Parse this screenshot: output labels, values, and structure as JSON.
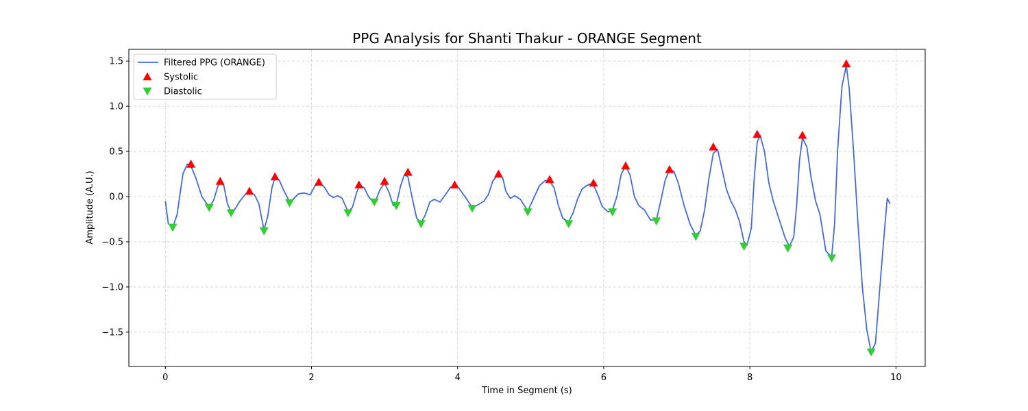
{
  "chart_data": {
    "type": "line",
    "title": "PPG Analysis for Shanti Thakur - ORANGE Segment",
    "xlabel": "Time in Segment (s)",
    "ylabel": "Amplitude (A.U.)",
    "xlim": [
      -0.5,
      10.4
    ],
    "ylim": [
      -1.88,
      1.63
    ],
    "xticks": [
      0,
      2,
      4,
      6,
      8,
      10
    ],
    "xtick_labels": [
      "0",
      "2",
      "4",
      "6",
      "8",
      "10"
    ],
    "yticks": [
      -1.5,
      -1.0,
      -0.5,
      0.0,
      0.5,
      1.0,
      1.5
    ],
    "ytick_labels": [
      "−1.5",
      "−1.0",
      "−0.5",
      "0.0",
      "0.5",
      "1.0",
      "1.5"
    ],
    "grid": true,
    "legend_position": "top-left",
    "series": [
      {
        "name": "Filtered PPG (ORANGE)",
        "kind": "line",
        "color": "#4169e1",
        "x": [
          0.0,
          0.04,
          0.1,
          0.16,
          0.24,
          0.3,
          0.35,
          0.42,
          0.5,
          0.6,
          0.66,
          0.72,
          0.76,
          0.8,
          0.85,
          0.9,
          0.96,
          1.02,
          1.1,
          1.15,
          1.22,
          1.28,
          1.35,
          1.4,
          1.46,
          1.5,
          1.56,
          1.62,
          1.7,
          1.76,
          1.82,
          1.9,
          1.98,
          2.05,
          2.12,
          2.18,
          2.24,
          2.3,
          2.36,
          2.42,
          2.5,
          2.56,
          2.62,
          2.66,
          2.72,
          2.78,
          2.84,
          2.88,
          2.94,
          3.0,
          3.06,
          3.12,
          3.16,
          3.22,
          3.27,
          3.32,
          3.38,
          3.44,
          3.5,
          3.56,
          3.62,
          3.68,
          3.76,
          3.84,
          3.9,
          3.96,
          4.02,
          4.1,
          4.2,
          4.28,
          4.36,
          4.42,
          4.48,
          4.56,
          4.62,
          4.66,
          4.72,
          4.78,
          4.86,
          4.96,
          5.04,
          5.12,
          5.2,
          5.26,
          5.32,
          5.38,
          5.44,
          5.52,
          5.58,
          5.64,
          5.7,
          5.76,
          5.82,
          5.86,
          5.92,
          5.98,
          6.06,
          6.12,
          6.18,
          6.24,
          6.3,
          6.36,
          6.42,
          6.48,
          6.56,
          6.64,
          6.72,
          6.78,
          6.84,
          6.9,
          6.96,
          7.02,
          7.1,
          7.18,
          7.26,
          7.32,
          7.38,
          7.44,
          7.5,
          7.56,
          7.62,
          7.68,
          7.74,
          7.8,
          7.86,
          7.92,
          7.96,
          8.02,
          8.06,
          8.1,
          8.14,
          8.2,
          8.26,
          8.32,
          8.4,
          8.48,
          8.54,
          8.6,
          8.64,
          8.68,
          8.72,
          8.78,
          8.84,
          8.9,
          8.96,
          9.04,
          9.12,
          9.16,
          9.2,
          9.26,
          9.32,
          9.36,
          9.42,
          9.48,
          9.54,
          9.6,
          9.66,
          9.72,
          9.78,
          9.84,
          9.88,
          9.92
        ],
        "y": [
          -0.05,
          -0.3,
          -0.34,
          -0.2,
          0.25,
          0.36,
          0.34,
          0.2,
          0.0,
          -0.12,
          -0.04,
          0.12,
          0.16,
          0.12,
          -0.08,
          -0.17,
          -0.13,
          -0.05,
          0.03,
          0.05,
          0.02,
          -0.08,
          -0.37,
          -0.22,
          0.1,
          0.21,
          0.18,
          0.07,
          -0.06,
          -0.02,
          0.03,
          0.04,
          0.02,
          0.12,
          0.15,
          0.1,
          0.02,
          -0.01,
          0.01,
          -0.02,
          -0.17,
          -0.12,
          0.05,
          0.12,
          0.1,
          0.0,
          -0.06,
          -0.04,
          0.08,
          0.15,
          0.05,
          -0.1,
          -0.09,
          0.12,
          0.24,
          0.22,
          -0.02,
          -0.24,
          -0.29,
          -0.2,
          -0.06,
          -0.03,
          -0.06,
          0.03,
          0.1,
          0.13,
          0.09,
          0.0,
          -0.12,
          -0.09,
          -0.05,
          0.02,
          0.17,
          0.25,
          0.2,
          0.06,
          -0.02,
          0.01,
          -0.03,
          -0.16,
          -0.02,
          0.12,
          0.18,
          0.17,
          0.1,
          -0.1,
          -0.24,
          -0.28,
          -0.18,
          -0.03,
          0.08,
          0.12,
          0.14,
          0.13,
          0.02,
          -0.11,
          -0.17,
          -0.15,
          0.0,
          0.25,
          0.34,
          0.24,
          0.0,
          -0.1,
          -0.15,
          -0.26,
          -0.26,
          -0.05,
          0.18,
          0.3,
          0.28,
          0.15,
          -0.1,
          -0.3,
          -0.43,
          -0.38,
          -0.15,
          0.2,
          0.48,
          0.52,
          0.3,
          0.08,
          -0.05,
          -0.14,
          -0.28,
          -0.5,
          -0.54,
          -0.35,
          0.2,
          0.6,
          0.68,
          0.5,
          0.15,
          -0.05,
          -0.25,
          -0.45,
          -0.55,
          -0.45,
          -0.1,
          0.4,
          0.65,
          0.55,
          0.2,
          -0.05,
          -0.2,
          -0.6,
          -0.67,
          -0.3,
          0.5,
          1.22,
          1.45,
          1.2,
          0.5,
          -0.3,
          -1.0,
          -1.47,
          -1.72,
          -1.62,
          -1.0,
          -0.4,
          -0.02,
          -0.08
        ]
      },
      {
        "name": "Systolic",
        "kind": "marker",
        "marker": "triangle-up",
        "color": "#ff0000",
        "x": [
          0.35,
          0.75,
          1.15,
          1.5,
          2.1,
          2.65,
          3.0,
          3.32,
          3.96,
          4.56,
          5.26,
          5.86,
          6.3,
          6.9,
          7.5,
          8.1,
          8.72,
          9.32
        ],
        "y": [
          0.36,
          0.17,
          0.06,
          0.22,
          0.16,
          0.13,
          0.17,
          0.27,
          0.13,
          0.25,
          0.19,
          0.15,
          0.34,
          0.3,
          0.55,
          0.69,
          0.68,
          1.47
        ]
      },
      {
        "name": "Diastolic",
        "kind": "marker",
        "marker": "triangle-down",
        "color": "#32cd32",
        "x": [
          0.1,
          0.6,
          0.9,
          1.35,
          1.7,
          2.5,
          2.86,
          3.16,
          3.5,
          4.2,
          4.96,
          5.52,
          6.12,
          6.72,
          7.26,
          7.92,
          8.52,
          9.12,
          9.66
        ],
        "y": [
          -0.34,
          -0.12,
          -0.18,
          -0.38,
          -0.07,
          -0.18,
          -0.06,
          -0.1,
          -0.3,
          -0.13,
          -0.17,
          -0.3,
          -0.17,
          -0.27,
          -0.44,
          -0.55,
          -0.57,
          -0.68,
          -1.72
        ]
      }
    ]
  }
}
